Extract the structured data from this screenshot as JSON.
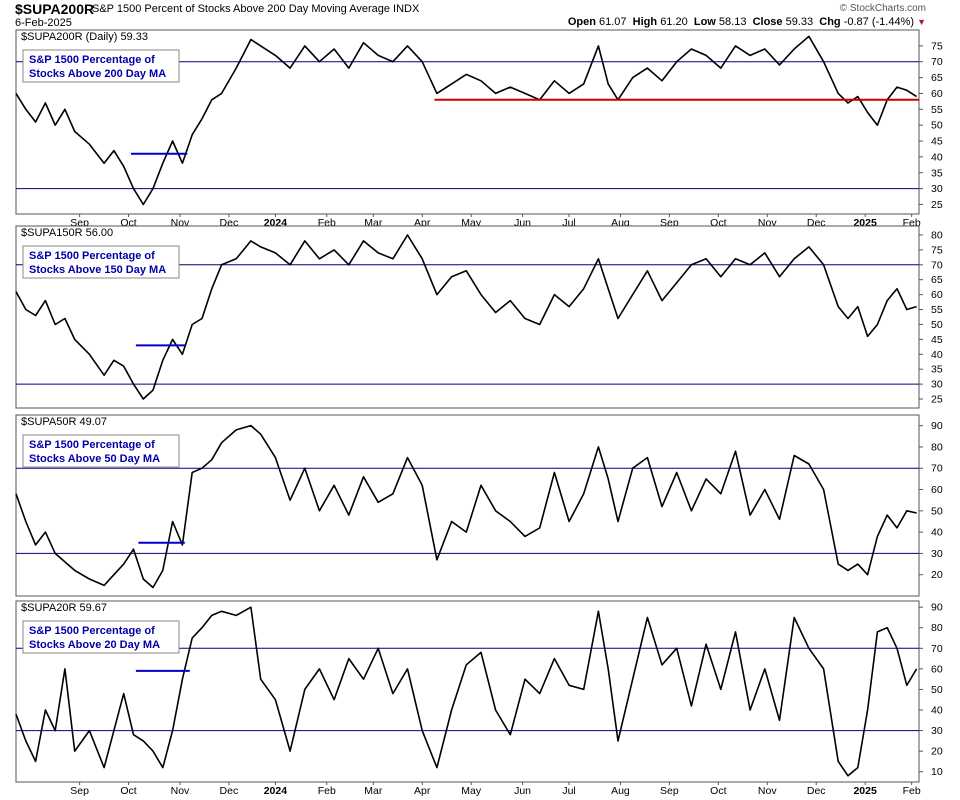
{
  "header": {
    "symbol": "$SUPA200R",
    "description": "S&P 1500 Percent of Stocks Above 200 Day Moving Average INDX",
    "date": "6-Feb-2025",
    "credit": "© StockCharts.com",
    "open_label": "Open",
    "open": "61.07",
    "high_label": "High",
    "high": "61.20",
    "low_label": "Low",
    "low": "58.13",
    "close_label": "Close",
    "close": "59.33",
    "chg_label": "Chg",
    "chg": "-0.87 (-1.44%)",
    "chg_icon": "down-triangle-icon"
  },
  "x_axis": {
    "labels": [
      {
        "t": "Sep",
        "m": 1.3
      },
      {
        "t": "Oct",
        "m": 2.3
      },
      {
        "t": "Nov",
        "m": 3.35
      },
      {
        "t": "Dec",
        "m": 4.35
      },
      {
        "t": "2024",
        "m": 5.3,
        "bold": true
      },
      {
        "t": "Feb",
        "m": 6.35
      },
      {
        "t": "Mar",
        "m": 7.3
      },
      {
        "t": "Apr",
        "m": 8.3
      },
      {
        "t": "May",
        "m": 9.3
      },
      {
        "t": "Jun",
        "m": 10.35
      },
      {
        "t": "Jul",
        "m": 11.3
      },
      {
        "t": "Aug",
        "m": 12.35
      },
      {
        "t": "Sep",
        "m": 13.35
      },
      {
        "t": "Oct",
        "m": 14.35
      },
      {
        "t": "Nov",
        "m": 15.35
      },
      {
        "t": "Dec",
        "m": 16.35
      },
      {
        "t": "2025",
        "m": 17.35,
        "bold": true
      },
      {
        "t": "Feb",
        "m": 18.3
      }
    ]
  },
  "chart_data": [
    {
      "type": "line",
      "label": "$SUPA200R (Daily) 59.33",
      "legend_line1": "S&P 1500 Percentage of",
      "legend_line2": "Stocks Above 200 Day MA",
      "ylim": [
        22,
        80
      ],
      "yticks": [
        25,
        30,
        35,
        40,
        45,
        50,
        55,
        60,
        65,
        70,
        75
      ],
      "hlines": [
        70,
        30
      ],
      "segments": [
        {
          "x0": 2.35,
          "x1": 3.5,
          "y": 41,
          "color": "#0000cc"
        },
        {
          "x0": 8.55,
          "x1": 18.45,
          "y": 58,
          "color": "#cc0000"
        }
      ],
      "x": [
        0.0,
        0.2,
        0.4,
        0.6,
        0.8,
        1.0,
        1.2,
        1.5,
        1.8,
        2.0,
        2.2,
        2.4,
        2.6,
        2.8,
        3.0,
        3.2,
        3.4,
        3.6,
        3.8,
        4.0,
        4.2,
        4.5,
        4.8,
        5.0,
        5.3,
        5.6,
        5.9,
        6.2,
        6.5,
        6.8,
        7.1,
        7.4,
        7.7,
        8.0,
        8.3,
        8.6,
        8.9,
        9.2,
        9.5,
        9.8,
        10.1,
        10.4,
        10.7,
        11.0,
        11.3,
        11.6,
        11.9,
        12.1,
        12.3,
        12.6,
        12.9,
        13.2,
        13.5,
        13.8,
        14.1,
        14.4,
        14.7,
        15.0,
        15.3,
        15.6,
        15.9,
        16.2,
        16.5,
        16.8,
        17.0,
        17.2,
        17.4,
        17.6,
        17.8,
        18.0,
        18.2,
        18.4
      ],
      "y": [
        60,
        55,
        51,
        57,
        50,
        55,
        48,
        44,
        38,
        42,
        37,
        30,
        25,
        30,
        38,
        45,
        38,
        47,
        52,
        58,
        60,
        68,
        77,
        75,
        72,
        68,
        75,
        70,
        74,
        68,
        76,
        72,
        70,
        75,
        70,
        60,
        63,
        66,
        64,
        60,
        62,
        60,
        58,
        64,
        60,
        63,
        75,
        63,
        58,
        65,
        68,
        64,
        70,
        74,
        72,
        68,
        75,
        72,
        74,
        69,
        74,
        78,
        70,
        60,
        57,
        59,
        54,
        50,
        58,
        62,
        61,
        59
      ]
    },
    {
      "type": "line",
      "label": "$SUPA150R 56.00",
      "legend_line1": "S&P 1500 Percentage of",
      "legend_line2": "Stocks Above 150 Day MA",
      "ylim": [
        22,
        83
      ],
      "yticks": [
        25,
        30,
        35,
        40,
        45,
        50,
        55,
        60,
        65,
        70,
        75,
        80
      ],
      "hlines": [
        70,
        30
      ],
      "segments": [
        {
          "x0": 2.45,
          "x1": 3.45,
          "y": 43,
          "color": "#0000cc"
        }
      ],
      "x": [
        0.0,
        0.2,
        0.4,
        0.6,
        0.8,
        1.0,
        1.2,
        1.5,
        1.8,
        2.0,
        2.2,
        2.4,
        2.6,
        2.8,
        3.0,
        3.2,
        3.4,
        3.6,
        3.8,
        4.0,
        4.2,
        4.5,
        4.8,
        5.0,
        5.3,
        5.6,
        5.9,
        6.2,
        6.5,
        6.8,
        7.1,
        7.4,
        7.7,
        8.0,
        8.3,
        8.6,
        8.9,
        9.2,
        9.5,
        9.8,
        10.1,
        10.4,
        10.7,
        11.0,
        11.3,
        11.6,
        11.9,
        12.1,
        12.3,
        12.6,
        12.9,
        13.2,
        13.5,
        13.8,
        14.1,
        14.4,
        14.7,
        15.0,
        15.3,
        15.6,
        15.9,
        16.2,
        16.5,
        16.8,
        17.0,
        17.2,
        17.4,
        17.6,
        17.8,
        18.0,
        18.2,
        18.4
      ],
      "y": [
        61,
        55,
        53,
        58,
        50,
        52,
        45,
        40,
        33,
        38,
        36,
        30,
        25,
        28,
        38,
        45,
        40,
        50,
        52,
        62,
        70,
        72,
        78,
        76,
        74,
        70,
        78,
        72,
        75,
        70,
        78,
        74,
        72,
        80,
        72,
        60,
        66,
        68,
        60,
        54,
        58,
        52,
        50,
        60,
        56,
        62,
        72,
        62,
        52,
        60,
        68,
        58,
        64,
        70,
        72,
        66,
        72,
        70,
        74,
        66,
        72,
        76,
        70,
        56,
        52,
        56,
        46,
        50,
        58,
        62,
        55,
        56
      ]
    },
    {
      "type": "line",
      "label": "$SUPA50R 49.07",
      "legend_line1": "S&P 1500 Percentage of",
      "legend_line2": "Stocks Above 50 Day MA",
      "ylim": [
        10,
        95
      ],
      "yticks": [
        20,
        30,
        40,
        50,
        60,
        70,
        80,
        90
      ],
      "hlines": [
        70,
        30
      ],
      "segments": [
        {
          "x0": 2.5,
          "x1": 3.45,
          "y": 35,
          "color": "#0000cc"
        }
      ],
      "x": [
        0.0,
        0.2,
        0.4,
        0.6,
        0.8,
        1.0,
        1.2,
        1.5,
        1.8,
        2.0,
        2.2,
        2.4,
        2.6,
        2.8,
        3.0,
        3.2,
        3.4,
        3.6,
        3.8,
        4.0,
        4.2,
        4.5,
        4.8,
        5.0,
        5.3,
        5.6,
        5.9,
        6.2,
        6.5,
        6.8,
        7.1,
        7.4,
        7.7,
        8.0,
        8.3,
        8.6,
        8.9,
        9.2,
        9.5,
        9.8,
        10.1,
        10.4,
        10.7,
        11.0,
        11.3,
        11.6,
        11.9,
        12.1,
        12.3,
        12.6,
        12.9,
        13.2,
        13.5,
        13.8,
        14.1,
        14.4,
        14.7,
        15.0,
        15.3,
        15.6,
        15.9,
        16.2,
        16.5,
        16.8,
        17.0,
        17.2,
        17.4,
        17.6,
        17.8,
        18.0,
        18.2,
        18.4
      ],
      "y": [
        58,
        45,
        34,
        40,
        30,
        26,
        22,
        18,
        15,
        20,
        25,
        32,
        18,
        14,
        22,
        45,
        34,
        68,
        70,
        74,
        82,
        88,
        90,
        86,
        75,
        55,
        70,
        50,
        62,
        48,
        66,
        54,
        58,
        75,
        62,
        27,
        45,
        40,
        62,
        50,
        45,
        38,
        42,
        68,
        45,
        58,
        80,
        65,
        45,
        70,
        75,
        52,
        68,
        50,
        65,
        58,
        78,
        48,
        60,
        46,
        76,
        72,
        60,
        25,
        22,
        25,
        20,
        38,
        48,
        42,
        50,
        49
      ]
    },
    {
      "type": "line",
      "label": "$SUPA20R 59.67",
      "legend_line1": "S&P 1500 Percentage of",
      "legend_line2": "Stocks Above 20 Day MA",
      "ylim": [
        5,
        93
      ],
      "yticks": [
        10,
        20,
        30,
        40,
        50,
        60,
        70,
        80,
        90
      ],
      "hlines": [
        70,
        30
      ],
      "segments": [
        {
          "x0": 2.45,
          "x1": 3.55,
          "y": 59,
          "color": "#0000cc"
        }
      ],
      "x": [
        0.0,
        0.2,
        0.4,
        0.6,
        0.8,
        1.0,
        1.2,
        1.5,
        1.8,
        2.0,
        2.2,
        2.4,
        2.6,
        2.8,
        3.0,
        3.2,
        3.4,
        3.6,
        3.8,
        4.0,
        4.2,
        4.5,
        4.8,
        5.0,
        5.3,
        5.6,
        5.9,
        6.2,
        6.5,
        6.8,
        7.1,
        7.4,
        7.7,
        8.0,
        8.3,
        8.6,
        8.9,
        9.2,
        9.5,
        9.8,
        10.1,
        10.4,
        10.7,
        11.0,
        11.3,
        11.6,
        11.9,
        12.1,
        12.3,
        12.6,
        12.9,
        13.2,
        13.5,
        13.8,
        14.1,
        14.4,
        14.7,
        15.0,
        15.3,
        15.6,
        15.9,
        16.2,
        16.5,
        16.8,
        17.0,
        17.2,
        17.4,
        17.6,
        17.8,
        18.0,
        18.2,
        18.4
      ],
      "y": [
        38,
        25,
        15,
        40,
        30,
        60,
        20,
        30,
        12,
        30,
        48,
        28,
        25,
        20,
        12,
        30,
        55,
        75,
        80,
        86,
        88,
        86,
        90,
        55,
        45,
        20,
        50,
        60,
        45,
        65,
        55,
        70,
        48,
        60,
        30,
        12,
        40,
        62,
        68,
        40,
        28,
        55,
        48,
        65,
        52,
        50,
        88,
        60,
        25,
        55,
        85,
        62,
        70,
        42,
        72,
        50,
        78,
        40,
        60,
        35,
        85,
        70,
        60,
        15,
        8,
        12,
        40,
        78,
        80,
        70,
        52,
        60
      ]
    }
  ]
}
